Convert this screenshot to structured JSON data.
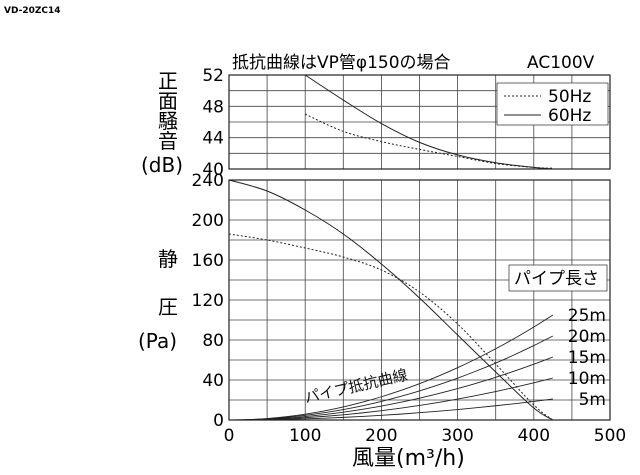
{
  "model_label": "VD-20ZC14",
  "chart_data": [
    {
      "type": "line",
      "note": "抵抗曲線はVP管φ150の場合",
      "voltage": "AC100V",
      "ylabel_chars": [
        "正",
        "面",
        "騒",
        "音"
      ],
      "ylabel_unit": "(dB)",
      "ylim": [
        40,
        52
      ],
      "yticks": [
        "52",
        "48",
        "44",
        "40"
      ],
      "xlim": [
        0,
        500
      ],
      "grid": true,
      "legend": "top-right",
      "series": [
        {
          "name": "50Hz",
          "style": "dotted",
          "x": [
            100,
            150,
            200,
            250,
            300,
            350,
            400,
            425
          ],
          "y": [
            47,
            44.8,
            43.5,
            42.5,
            41.6,
            40.7,
            40.2,
            40.1
          ]
        },
        {
          "name": "60Hz",
          "style": "solid",
          "x": [
            100,
            150,
            200,
            250,
            300,
            350,
            400,
            425
          ],
          "y": [
            52,
            48.8,
            45.8,
            43.4,
            41.8,
            40.8,
            40.2,
            40.0
          ]
        }
      ]
    },
    {
      "type": "line",
      "ylabel_chars": [
        "静",
        "圧"
      ],
      "ylabel_unit": "(Pa)",
      "xlabel": "風量(m³/h)",
      "ylim": [
        0,
        240
      ],
      "yticks": [
        "240",
        "200",
        "160",
        "120",
        "80",
        "40",
        "0"
      ],
      "xlim": [
        0,
        500
      ],
      "xticks": [
        "0",
        "100",
        "200",
        "300",
        "400",
        "500"
      ],
      "grid": true,
      "series": [
        {
          "name": "60Hz",
          "style": "solid",
          "x": [
            0,
            50,
            100,
            150,
            200,
            250,
            300,
            350,
            400,
            425
          ],
          "y": [
            240,
            229,
            210,
            186,
            156,
            122,
            85,
            48,
            12,
            0
          ]
        },
        {
          "name": "50Hz",
          "style": "dotted",
          "x": [
            0,
            50,
            100,
            150,
            200,
            250,
            300,
            350,
            400,
            425
          ],
          "y": [
            186,
            180,
            172,
            163,
            150,
            128,
            96,
            56,
            15,
            0
          ]
        }
      ],
      "pipe_resistance": {
        "label": "パイプ抵抗曲線",
        "header": "パイプ長さ",
        "curves": [
          {
            "name": "25m",
            "x_end": 425,
            "y_end": 105
          },
          {
            "name": "20m",
            "x_end": 425,
            "y_end": 84
          },
          {
            "name": "15m",
            "x_end": 425,
            "y_end": 63
          },
          {
            "name": "10m",
            "x_end": 425,
            "y_end": 42
          },
          {
            "name": "5m",
            "x_end": 425,
            "y_end": 21
          }
        ]
      }
    }
  ]
}
